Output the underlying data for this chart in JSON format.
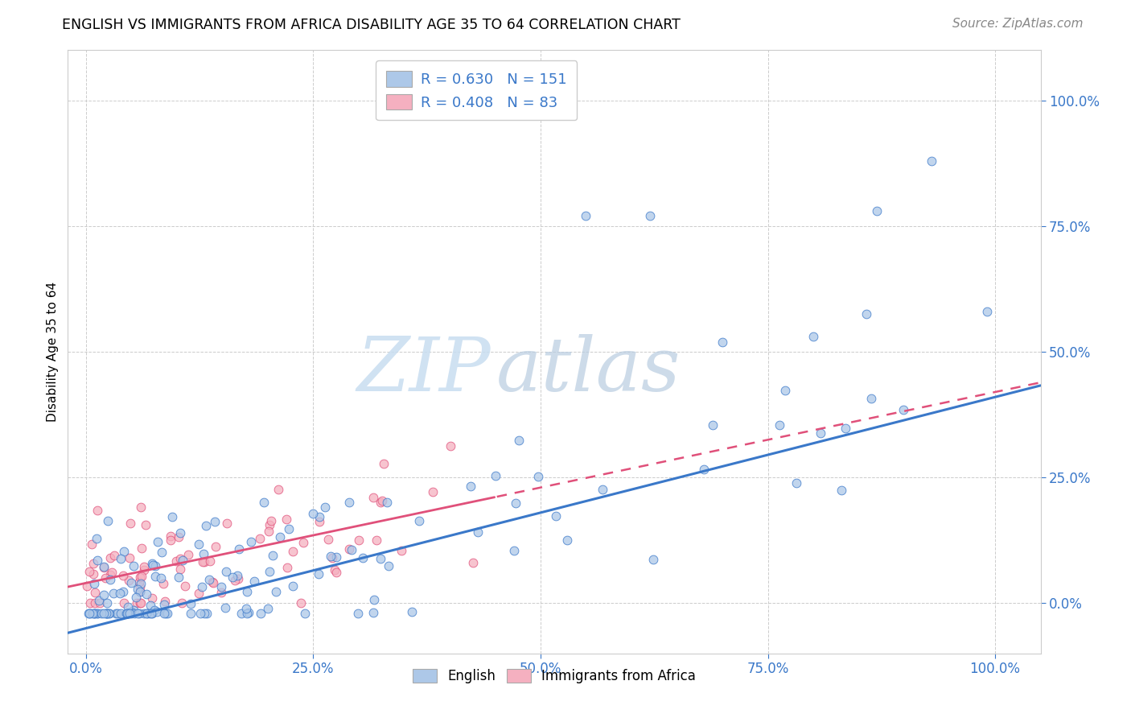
{
  "title": "ENGLISH VS IMMIGRANTS FROM AFRICA DISABILITY AGE 35 TO 64 CORRELATION CHART",
  "source": "Source: ZipAtlas.com",
  "ylabel": "Disability Age 35 to 64",
  "legend_bottom": [
    "English",
    "Immigrants from Africa"
  ],
  "r_english": 0.63,
  "n_english": 151,
  "r_africa": 0.408,
  "n_africa": 83,
  "english_color": "#adc8e8",
  "africa_color": "#f5b0c0",
  "english_line_color": "#3a78c9",
  "africa_line_color": "#e0507a",
  "africa_dash_color": "#e0507a",
  "watermark_color": "#d8e8f5",
  "title_fontsize": 12.5,
  "source_fontsize": 11,
  "tick_label_color": "#3a78c9",
  "tick_label_fontsize": 12,
  "ylabel_fontsize": 11,
  "legend_fontsize": 13,
  "scatter_size": 60,
  "scatter_alpha": 0.75,
  "eng_slope": 0.46,
  "eng_intercept": -0.05,
  "afr_slope": 0.38,
  "afr_intercept": 0.04,
  "xlim": [
    -0.02,
    1.05
  ],
  "ylim": [
    -0.1,
    1.1
  ]
}
